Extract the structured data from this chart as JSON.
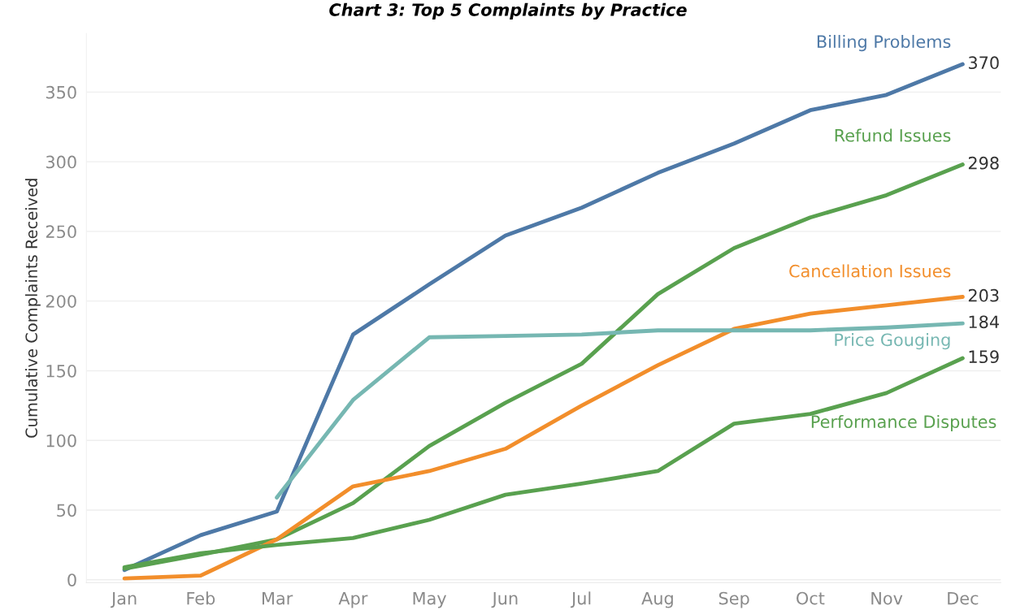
{
  "chart_data": {
    "type": "line",
    "title": "Chart 3: Top 5 Complaints by Practice",
    "ylabel": "Cumulative Complaints Received",
    "categories": [
      "Jan",
      "Feb",
      "Mar",
      "Apr",
      "May",
      "Jun",
      "Jul",
      "Aug",
      "Sep",
      "Oct",
      "Nov",
      "Dec"
    ],
    "series": [
      {
        "name": "Billing Problems",
        "color": "#4e79a7",
        "values": [
          7,
          32,
          49,
          176,
          212,
          247,
          267,
          292,
          313,
          337,
          348,
          370
        ],
        "value_labels": [
          null,
          null,
          null,
          null,
          null,
          null,
          null,
          null,
          null,
          null,
          null,
          "370"
        ]
      },
      {
        "name": "Refund Issues",
        "color": "#59a14f",
        "values": [
          8,
          18,
          29,
          55,
          96,
          127,
          155,
          205,
          238,
          260,
          276,
          298
        ],
        "value_labels": [
          null,
          null,
          null,
          null,
          null,
          null,
          null,
          null,
          null,
          null,
          null,
          "298"
        ]
      },
      {
        "name": "Cancellation Issues",
        "color": "#f28e2b",
        "values": [
          1,
          3,
          29,
          67,
          78,
          94,
          125,
          154,
          180,
          191,
          197,
          203
        ],
        "value_labels": [
          null,
          null,
          null,
          null,
          null,
          null,
          null,
          null,
          null,
          null,
          null,
          "203"
        ]
      },
      {
        "name": "Price Gouging",
        "color": "#76b7b2",
        "values": [
          null,
          null,
          59,
          129,
          174,
          175,
          176,
          179,
          179,
          179,
          181,
          184
        ],
        "value_labels": [
          null,
          null,
          null,
          null,
          null,
          null,
          null,
          null,
          null,
          null,
          null,
          "184"
        ]
      },
      {
        "name": "Performance Disputes",
        "color": "#59a14f",
        "values": [
          9,
          19,
          25,
          30,
          43,
          61,
          69,
          78,
          112,
          119,
          134,
          159
        ],
        "value_labels": [
          null,
          null,
          null,
          null,
          null,
          null,
          null,
          null,
          null,
          null,
          null,
          "159"
        ]
      }
    ],
    "ylim": [
      -2,
      392
    ],
    "yticks": [
      0,
      50,
      100,
      150,
      200,
      250,
      300,
      350
    ],
    "grid": "y",
    "legend": false,
    "marker": "none",
    "line_style": "solid"
  }
}
